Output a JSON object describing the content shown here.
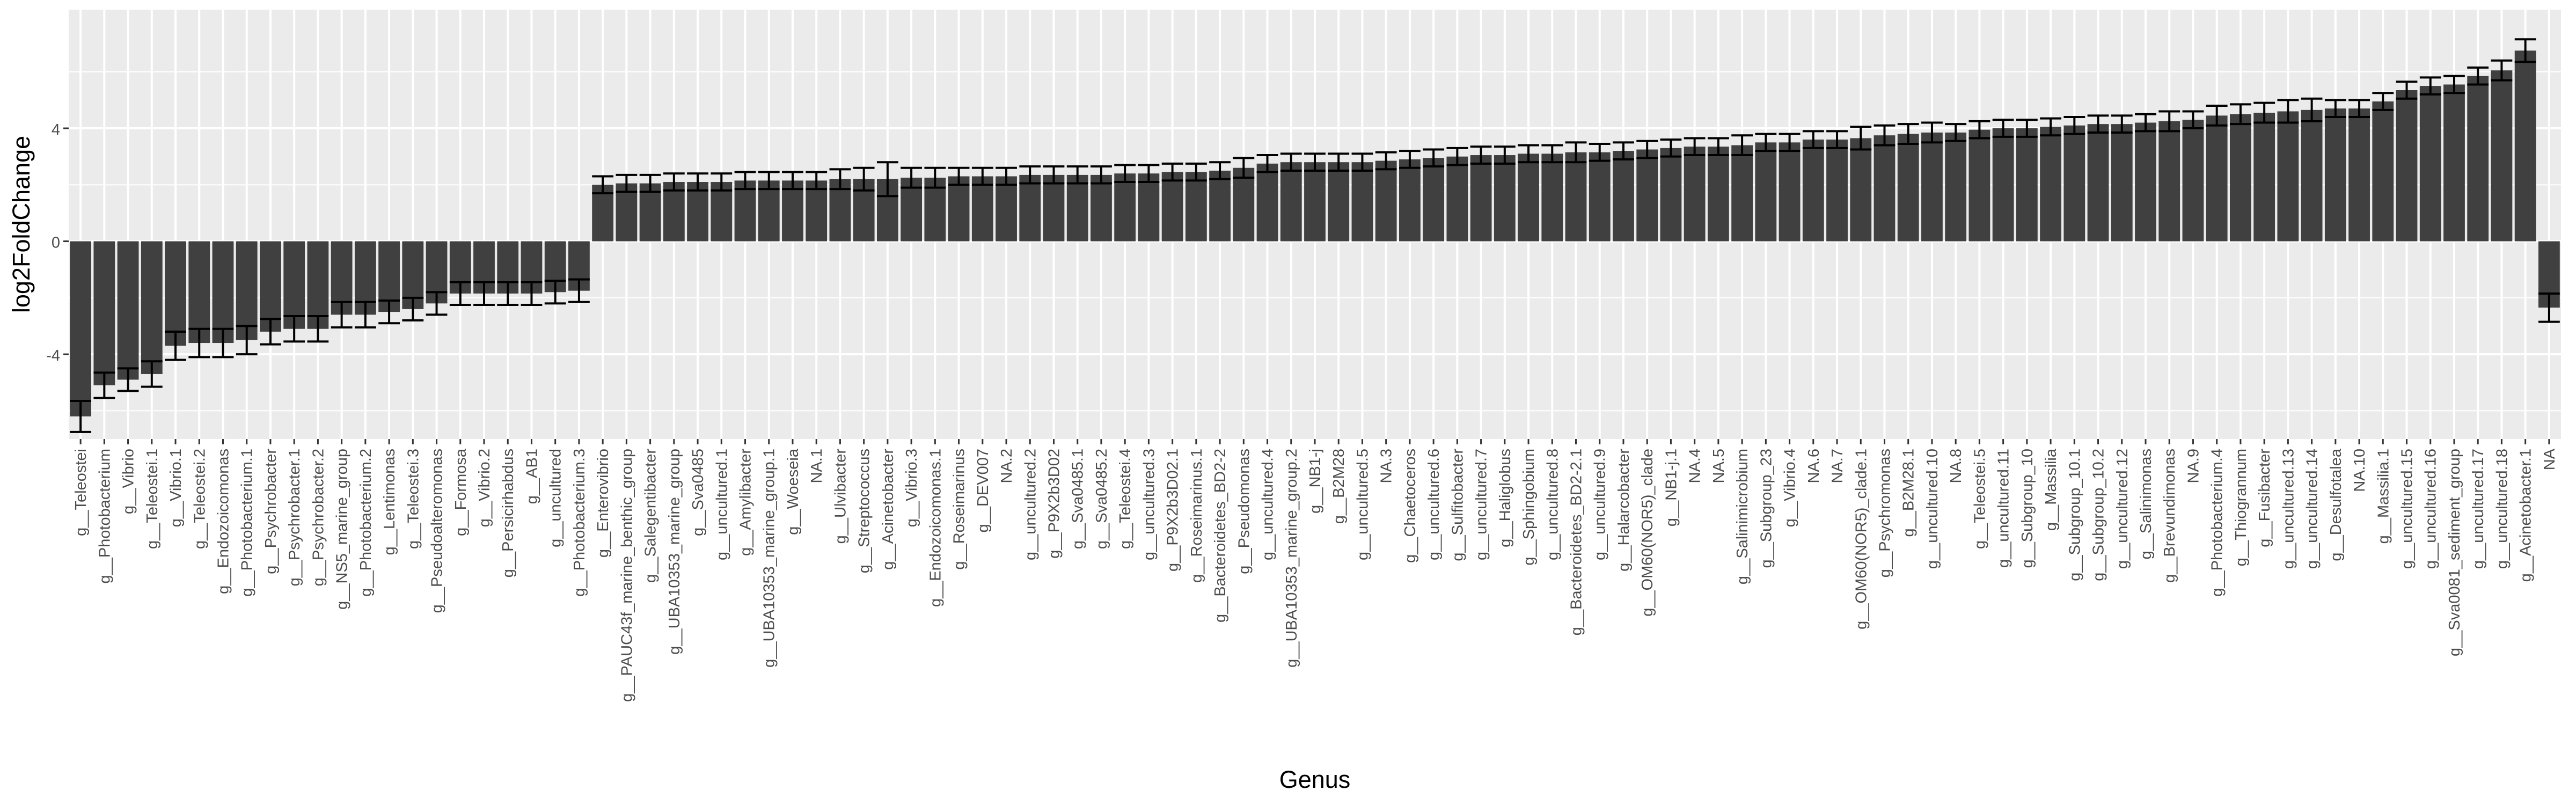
{
  "chart_data": {
    "type": "bar",
    "xlabel": "Genus",
    "ylabel": "log2FoldChange",
    "ylim": [
      -7.0,
      8.2
    ],
    "yticks": [
      -4,
      0,
      4
    ],
    "ytick_labels": [
      "-4",
      "0",
      "4"
    ],
    "grid": true,
    "error_bars": true,
    "style": {
      "panel_background": "#ebebeb",
      "grid_color": "#ffffff",
      "bar_color": "#404040",
      "errorbar_color": "#000000",
      "tick_text_color": "#4d4d4d",
      "axis_title_color": "#000000"
    },
    "categories": [
      "g__Teleostei",
      "g__Photobacterium",
      "g__Vibrio",
      "g__Teleostei.1",
      "g__Vibrio.1",
      "g__Teleostei.2",
      "g__Endozoicomonas",
      "g__Photobacterium.1",
      "g__Psychrobacter",
      "g__Psychrobacter.1",
      "g__Psychrobacter.2",
      "g__NS5_marine_group",
      "g__Photobacterium.2",
      "g__Lentimonas",
      "g__Teleostei.3",
      "g__Pseudoalteromonas",
      "g__Formosa",
      "g__Vibrio.2",
      "g__Persicirhabdus",
      "g__AB1",
      "g__uncultured",
      "g__Photobacterium.3",
      "g__Enterovibrio",
      "g__PAUC43f_marine_benthic_group",
      "g__Salegentibacter",
      "g__UBA10353_marine_group",
      "g__Sva0485",
      "g__uncultured.1",
      "g__Amylibacter",
      "g__UBA10353_marine_group.1",
      "g__Woeseia",
      "NA.1",
      "g__Ulvibacter",
      "g__Streptococcus",
      "g__Acinetobacter",
      "g__Vibrio.3",
      "g__Endozoicomonas.1",
      "g__Roseimarinus",
      "g__DEV007",
      "NA.2",
      "g__uncultured.2",
      "g__P9X2b3D02",
      "g__Sva0485.1",
      "g__Sva0485.2",
      "g__Teleostei.4",
      "g__uncultured.3",
      "g__P9X2b3D02.1",
      "g__Roseimarinus.1",
      "g__Bacteroidetes_BD2-2",
      "g__Pseudomonas",
      "g__uncultured.4",
      "g__UBA10353_marine_group.2",
      "g__NB1-j",
      "g__B2M28",
      "g__uncultured.5",
      "NA.3",
      "g__Chaetoceros",
      "g__uncultured.6",
      "g__Sulfitobacter",
      "g__uncultured.7",
      "g__Haliglobus",
      "g__Sphingobium",
      "g__uncultured.8",
      "g__Bacteroidetes_BD2-2.1",
      "g__uncultured.9",
      "g__Halarcobacter",
      "g__OM60(NOR5)_clade",
      "g__NB1-j.1",
      "NA.4",
      "NA.5",
      "g__Salinimicrobium",
      "g__Subgroup_23",
      "g__Vibrio.4",
      "NA.6",
      "NA.7",
      "g__OM60(NOR5)_clade.1",
      "g__Psychromonas",
      "g__B2M28.1",
      "g__uncultured.10",
      "NA.8",
      "g__Teleostei.5",
      "g__uncultured.11",
      "g__Subgroup_10",
      "g__Massilia",
      "g__Subgroup_10.1",
      "g__Subgroup_10.2",
      "g__uncultured.12",
      "g__Salinimonas",
      "g__Brevundimonas",
      "NA.9",
      "g__Photobacterium.4",
      "g__Thiogrannum",
      "g__Fusibacter",
      "g__uncultured.13",
      "g__uncultured.14",
      "g__Desulfotalea",
      "NA.10",
      "g__Massilia.1",
      "g__uncultured.15",
      "g__uncultured.16",
      "g__Sva0081_sediment_group",
      "g__uncultured.17",
      "g__uncultured.18",
      "g__Acinetobacter.1",
      "NA"
    ],
    "values": [
      -6.2,
      -5.1,
      -4.9,
      -4.7,
      -3.7,
      -3.6,
      -3.6,
      -3.5,
      -3.2,
      -3.1,
      -3.1,
      -2.6,
      -2.6,
      -2.5,
      -2.4,
      -2.2,
      -1.85,
      -1.85,
      -1.85,
      -1.85,
      -1.8,
      -1.75,
      2.0,
      2.05,
      2.05,
      2.1,
      2.1,
      2.1,
      2.15,
      2.15,
      2.15,
      2.15,
      2.2,
      2.2,
      2.2,
      2.25,
      2.25,
      2.3,
      2.3,
      2.3,
      2.35,
      2.35,
      2.35,
      2.35,
      2.4,
      2.4,
      2.45,
      2.45,
      2.5,
      2.6,
      2.75,
      2.8,
      2.8,
      2.8,
      2.8,
      2.85,
      2.9,
      2.95,
      3.0,
      3.05,
      3.05,
      3.1,
      3.1,
      3.15,
      3.15,
      3.2,
      3.25,
      3.3,
      3.35,
      3.35,
      3.4,
      3.5,
      3.5,
      3.6,
      3.6,
      3.65,
      3.75,
      3.8,
      3.85,
      3.85,
      3.95,
      4.0,
      4.0,
      4.05,
      4.1,
      4.15,
      4.15,
      4.2,
      4.25,
      4.3,
      4.45,
      4.5,
      4.55,
      4.6,
      4.65,
      4.7,
      4.7,
      4.95,
      5.35,
      5.5,
      5.55,
      5.85,
      6.05,
      6.75,
      -2.35
    ],
    "errors": [
      0.55,
      0.45,
      0.4,
      0.45,
      0.5,
      0.5,
      0.5,
      0.5,
      0.45,
      0.45,
      0.45,
      0.45,
      0.45,
      0.4,
      0.4,
      0.4,
      0.4,
      0.4,
      0.4,
      0.4,
      0.4,
      0.4,
      0.3,
      0.3,
      0.3,
      0.3,
      0.3,
      0.3,
      0.3,
      0.3,
      0.3,
      0.3,
      0.35,
      0.4,
      0.6,
      0.35,
      0.35,
      0.3,
      0.3,
      0.3,
      0.3,
      0.3,
      0.3,
      0.3,
      0.3,
      0.3,
      0.3,
      0.3,
      0.3,
      0.35,
      0.3,
      0.3,
      0.3,
      0.3,
      0.3,
      0.3,
      0.3,
      0.3,
      0.3,
      0.3,
      0.3,
      0.3,
      0.3,
      0.35,
      0.3,
      0.3,
      0.3,
      0.3,
      0.3,
      0.3,
      0.35,
      0.3,
      0.3,
      0.3,
      0.3,
      0.4,
      0.35,
      0.35,
      0.35,
      0.3,
      0.3,
      0.3,
      0.3,
      0.3,
      0.3,
      0.3,
      0.3,
      0.3,
      0.35,
      0.3,
      0.35,
      0.35,
      0.35,
      0.4,
      0.4,
      0.3,
      0.3,
      0.3,
      0.3,
      0.3,
      0.3,
      0.3,
      0.35,
      0.4,
      0.5
    ]
  }
}
